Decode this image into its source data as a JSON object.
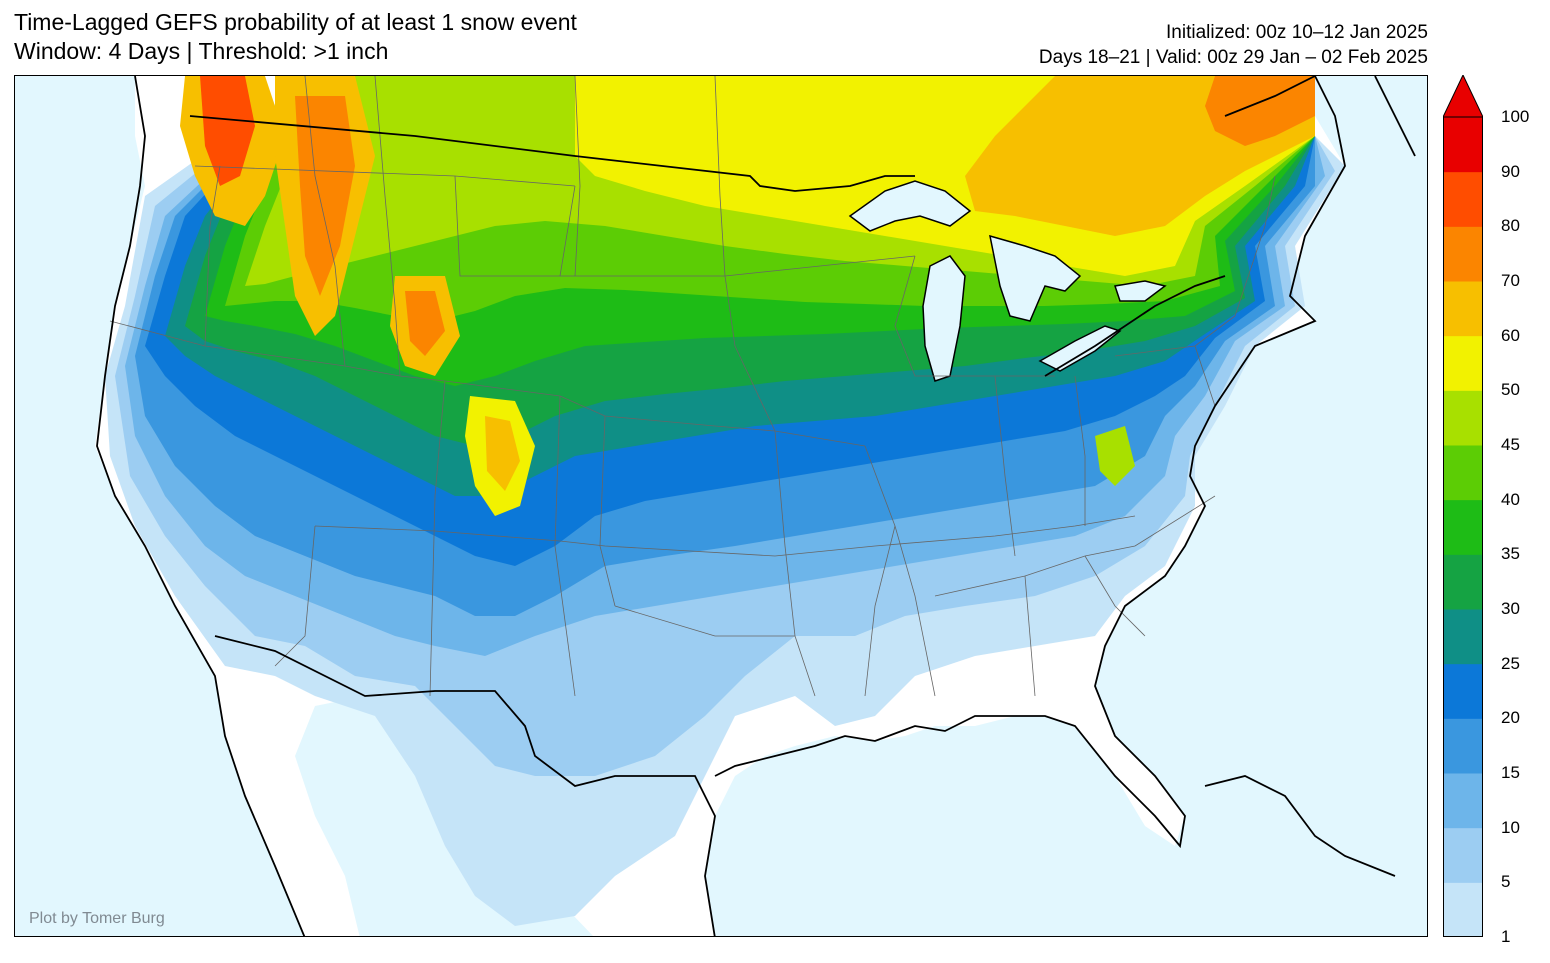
{
  "title": {
    "line1": "Time-Lagged GEFS probability of at least 1 snow event",
    "line2": "Window: 4 Days | Threshold: >1 inch"
  },
  "subtitle": {
    "initialized": "Initialized: 00z 10–12 Jan 2025",
    "valid": "Days 18–21 | Valid: 00z 29 Jan – 02 Feb 2025"
  },
  "credit": "Plot by Tomer Burg",
  "colorbar": {
    "labels": [
      "1",
      "5",
      "10",
      "15",
      "20",
      "25",
      "30",
      "35",
      "40",
      "45",
      "50",
      "60",
      "70",
      "80",
      "90",
      "100"
    ],
    "colors": [
      "#c5e4f8",
      "#9ccdf2",
      "#6db5ea",
      "#3a97df",
      "#0c78d8",
      "#0f8f86",
      "#15a343",
      "#1ebc16",
      "#5ccd05",
      "#a8e000",
      "#f2f200",
      "#f7bf00",
      "#fb8500",
      "#ff4d00",
      "#e80000"
    ],
    "extend_color": "#e80000"
  },
  "colors": {
    "ocean": "#e2f7fe",
    "land_no_snow": "#ffffff",
    "coastline": "#000000",
    "state_border": "#666666"
  }
}
